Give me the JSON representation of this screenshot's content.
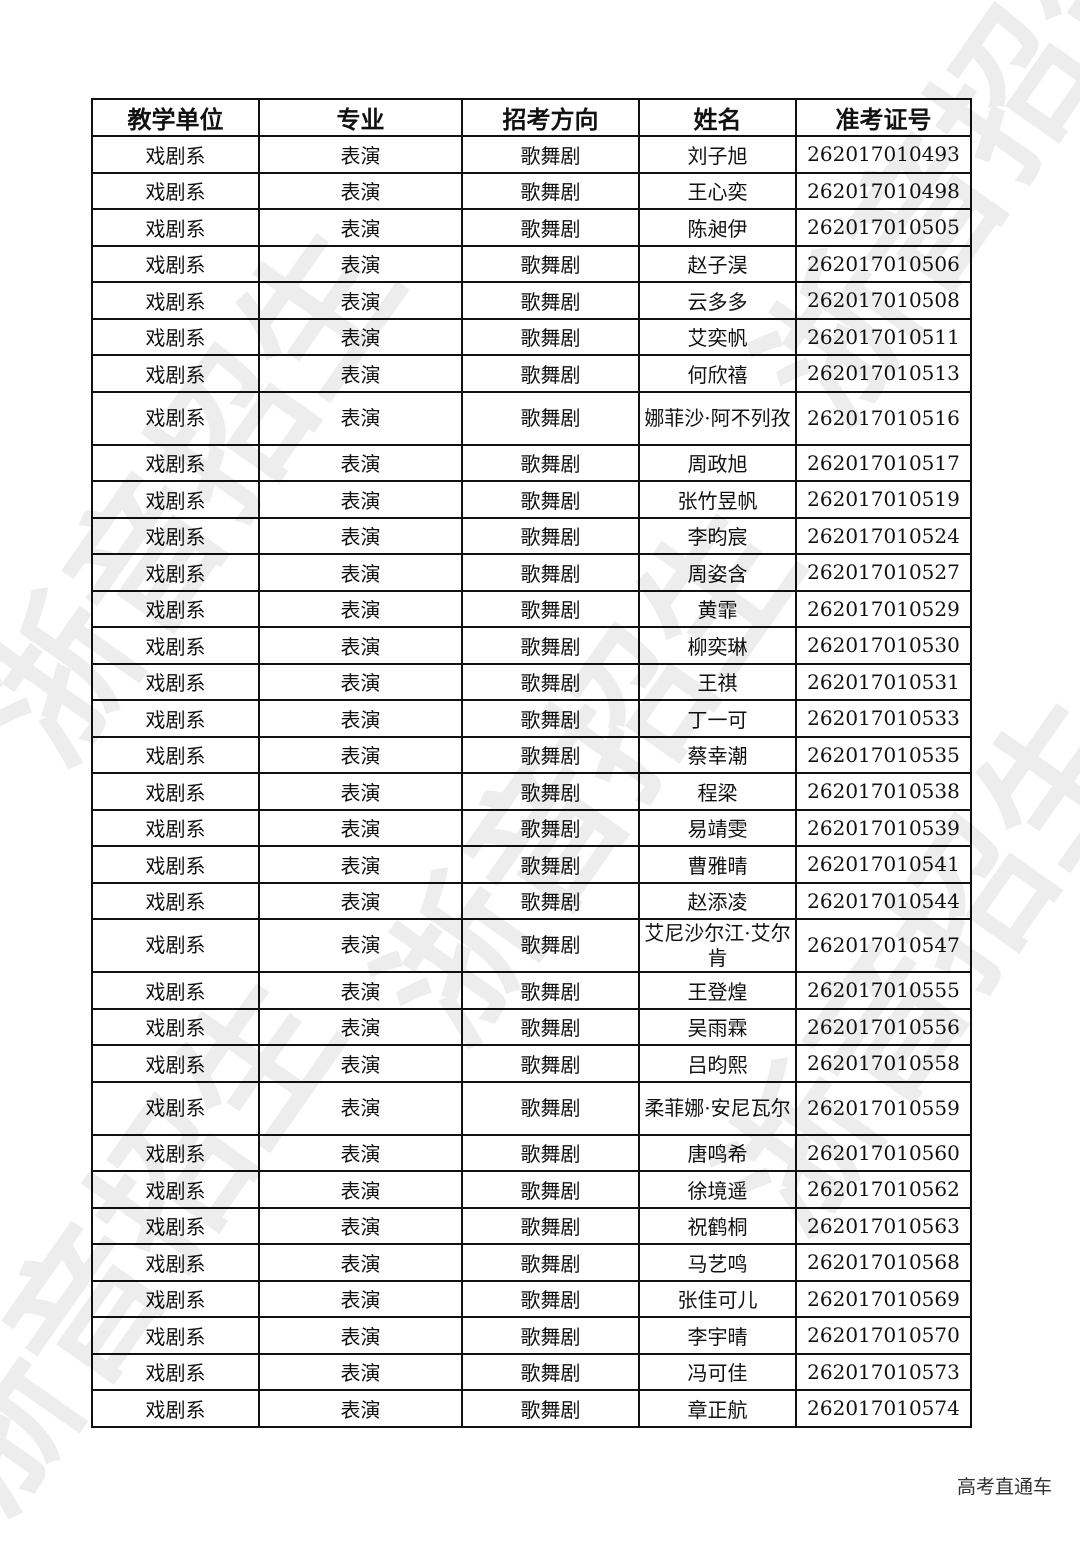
{
  "watermark": "浙音招生",
  "headers": [
    "教学单位",
    "专业",
    "招考方向",
    "姓名",
    "准考证号"
  ],
  "rows": [
    [
      "戏剧系",
      "表演",
      "歌舞剧",
      "刘子旭",
      "262017010493"
    ],
    [
      "戏剧系",
      "表演",
      "歌舞剧",
      "王心奕",
      "262017010498"
    ],
    [
      "戏剧系",
      "表演",
      "歌舞剧",
      "陈昶伊",
      "262017010505"
    ],
    [
      "戏剧系",
      "表演",
      "歌舞剧",
      "赵子淏",
      "262017010506"
    ],
    [
      "戏剧系",
      "表演",
      "歌舞剧",
      "云多多",
      "262017010508"
    ],
    [
      "戏剧系",
      "表演",
      "歌舞剧",
      "艾奕帆",
      "262017010511"
    ],
    [
      "戏剧系",
      "表演",
      "歌舞剧",
      "何欣禧",
      "262017010513"
    ],
    [
      "戏剧系",
      "表演",
      "歌舞剧",
      "娜菲沙·阿不列孜",
      "262017010516"
    ],
    [
      "戏剧系",
      "表演",
      "歌舞剧",
      "周政旭",
      "262017010517"
    ],
    [
      "戏剧系",
      "表演",
      "歌舞剧",
      "张竹昱帆",
      "262017010519"
    ],
    [
      "戏剧系",
      "表演",
      "歌舞剧",
      "李昀宸",
      "262017010524"
    ],
    [
      "戏剧系",
      "表演",
      "歌舞剧",
      "周姿含",
      "262017010527"
    ],
    [
      "戏剧系",
      "表演",
      "歌舞剧",
      "黄霏",
      "262017010529"
    ],
    [
      "戏剧系",
      "表演",
      "歌舞剧",
      "柳奕琳",
      "262017010530"
    ],
    [
      "戏剧系",
      "表演",
      "歌舞剧",
      "王祺",
      "262017010531"
    ],
    [
      "戏剧系",
      "表演",
      "歌舞剧",
      "丁一可",
      "262017010533"
    ],
    [
      "戏剧系",
      "表演",
      "歌舞剧",
      "蔡幸潮",
      "262017010535"
    ],
    [
      "戏剧系",
      "表演",
      "歌舞剧",
      "程梁",
      "262017010538"
    ],
    [
      "戏剧系",
      "表演",
      "歌舞剧",
      "易靖雯",
      "262017010539"
    ],
    [
      "戏剧系",
      "表演",
      "歌舞剧",
      "曹雅晴",
      "262017010541"
    ],
    [
      "戏剧系",
      "表演",
      "歌舞剧",
      "赵添凌",
      "262017010544"
    ],
    [
      "戏剧系",
      "表演",
      "歌舞剧",
      "艾尼沙尔江·艾尔肯",
      "262017010547"
    ],
    [
      "戏剧系",
      "表演",
      "歌舞剧",
      "王登煌",
      "262017010555"
    ],
    [
      "戏剧系",
      "表演",
      "歌舞剧",
      "吴雨霖",
      "262017010556"
    ],
    [
      "戏剧系",
      "表演",
      "歌舞剧",
      "吕昀熙",
      "262017010558"
    ],
    [
      "戏剧系",
      "表演",
      "歌舞剧",
      "柔菲娜·安尼瓦尔",
      "262017010559"
    ],
    [
      "戏剧系",
      "表演",
      "歌舞剧",
      "唐鸣希",
      "262017010560"
    ],
    [
      "戏剧系",
      "表演",
      "歌舞剧",
      "徐境遥",
      "262017010562"
    ],
    [
      "戏剧系",
      "表演",
      "歌舞剧",
      "祝鹤桐",
      "262017010563"
    ],
    [
      "戏剧系",
      "表演",
      "歌舞剧",
      "马艺鸣",
      "262017010568"
    ],
    [
      "戏剧系",
      "表演",
      "歌舞剧",
      "张佳可儿",
      "262017010569"
    ],
    [
      "戏剧系",
      "表演",
      "歌舞剧",
      "李宇晴",
      "262017010570"
    ],
    [
      "戏剧系",
      "表演",
      "歌舞剧",
      "冯可佳",
      "262017010573"
    ],
    [
      "戏剧系",
      "表演",
      "歌舞剧",
      "章正航",
      "262017010574"
    ]
  ],
  "footer": "高考直通车"
}
